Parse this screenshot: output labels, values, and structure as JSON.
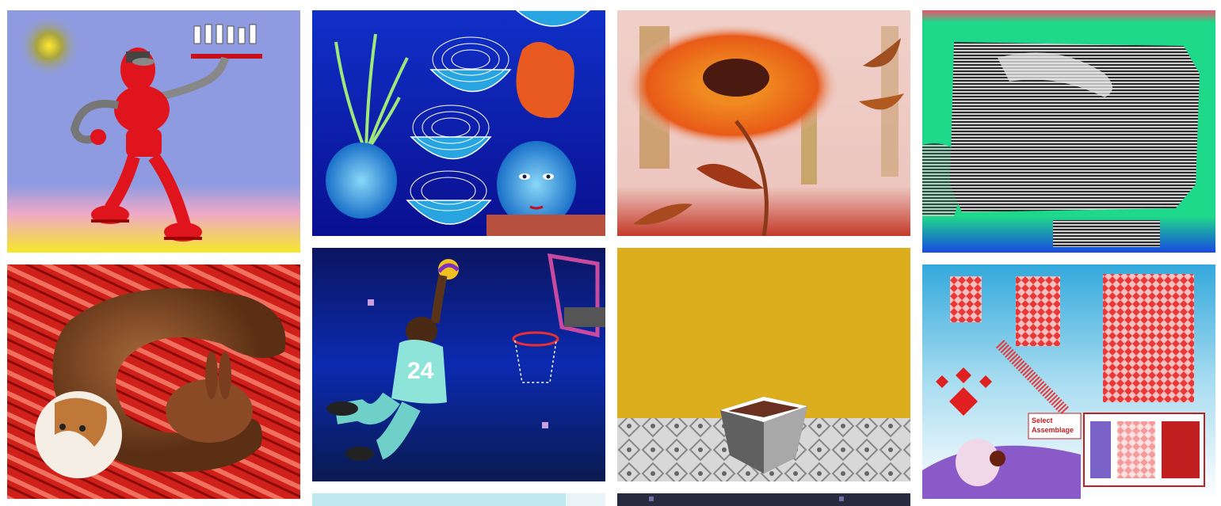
{
  "gallery": {
    "items": [
      {
        "subject": "red robot waiter carrying tray of glasses"
      },
      {
        "subject": "blue onions with face"
      },
      {
        "subject": "orange sunflower on pink background"
      },
      {
        "subject": "grey striped sculpture on green"
      },
      {
        "subject": "brown creature with rabbit and hamster on red patterned rug"
      },
      {
        "subject": "basketball player dunking"
      },
      {
        "subject": "grey box on patterned floor with yellow wall"
      },
      {
        "subject": "pattern assemblage interface with creature"
      },
      {
        "subject": "cyan partial tile"
      },
      {
        "subject": "dark partial tile"
      }
    ],
    "tile8_label_line1": "Select",
    "tile8_label_line2": "Assemblage",
    "player_number": "24"
  },
  "colors": {
    "page_bg": "#ffffff",
    "periwinkle": "#8f9be0",
    "deep_blue": "#0a1fb8",
    "pink_bg": "#edc6c0",
    "green_bg": "#1fd98a",
    "red_rug": "#d0201a",
    "night_blue": "#0b1f8c",
    "mustard": "#dcae1d",
    "sky_blue": "#34a9dc"
  }
}
